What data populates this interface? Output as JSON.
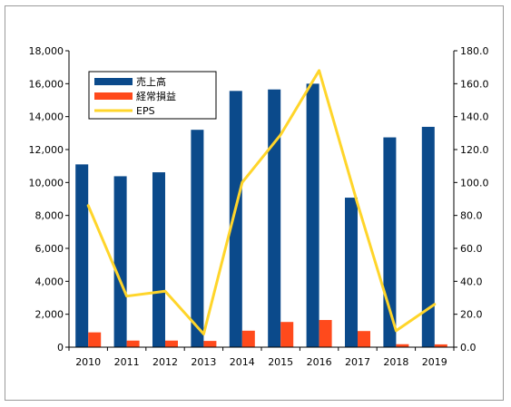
{
  "chart_data": {
    "type": "bar",
    "categories": [
      "2010",
      "2011",
      "2012",
      "2013",
      "2014",
      "2015",
      "2016",
      "2017",
      "2018",
      "2019"
    ],
    "series": [
      {
        "name": "売上高",
        "axis": "left",
        "kind": "bar",
        "color": "#0b4a8b",
        "values": [
          11100,
          10380,
          10620,
          13200,
          15560,
          15650,
          16000,
          9080,
          12740,
          13380
        ]
      },
      {
        "name": "経常損益",
        "axis": "left",
        "kind": "bar",
        "color": "#ff4a1c",
        "values": [
          900,
          400,
          400,
          380,
          1000,
          1530,
          1650,
          980,
          180,
          170
        ]
      },
      {
        "name": "EPS",
        "axis": "right",
        "kind": "line",
        "color": "#ffd52a",
        "values": [
          86.0,
          31.0,
          34.0,
          8.0,
          100.0,
          129.0,
          168.0,
          87.0,
          10.0,
          26.0
        ]
      }
    ],
    "left_axis": {
      "ylim": [
        0,
        18000
      ],
      "ticks": [
        "0",
        "2,000",
        "4,000",
        "6,000",
        "8,000",
        "10,000",
        "12,000",
        "14,000",
        "16,000",
        "18,000"
      ]
    },
    "right_axis": {
      "ylim": [
        0,
        180
      ],
      "ticks": [
        "0.0",
        "20.0",
        "40.0",
        "60.0",
        "80.0",
        "100.0",
        "120.0",
        "140.0",
        "160.0",
        "180.0"
      ]
    },
    "grid": false,
    "legend": "top-left"
  }
}
